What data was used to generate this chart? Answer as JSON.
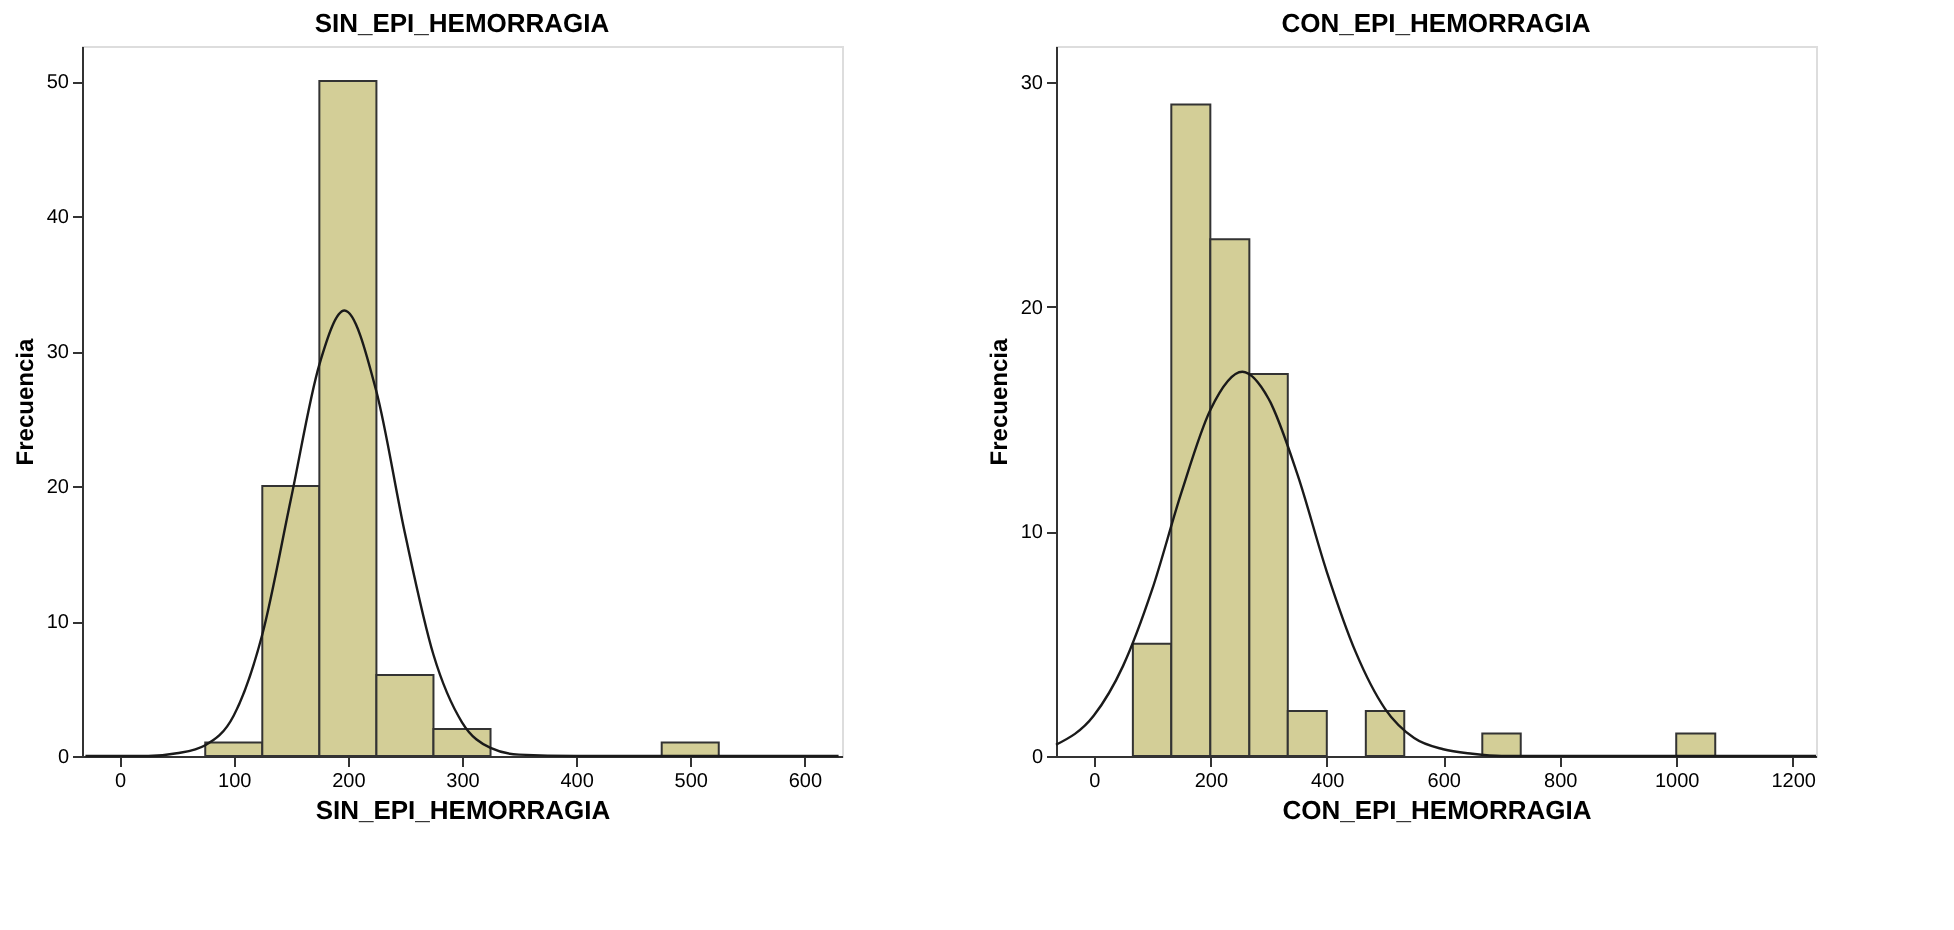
{
  "chart_data": [
    {
      "type": "histogram",
      "title": "SIN_EPI_HEMORRAGIA",
      "xlabel": "SIN_EPI_HEMORRAGIA",
      "ylabel": "Frecuencia",
      "xlim": [
        -33,
        633
      ],
      "xticks": [
        0,
        100,
        200,
        300,
        400,
        500,
        600
      ],
      "ylim": [
        0,
        52.6
      ],
      "yticks": [
        0,
        10,
        20,
        30,
        40,
        50
      ],
      "grid": false,
      "series": [
        {
          "color": "#d3ce97",
          "bins": [
            75,
            125,
            175,
            225,
            275,
            325
          ],
          "values": [
            1,
            20,
            50,
            6,
            2
          ]
        },
        {
          "color": "#d3ce97",
          "bins": [
            475,
            525
          ],
          "values": [
            1
          ]
        },
        {
          "type": "line",
          "color": "#1a1a1a",
          "x": [
            -30,
            0,
            25,
            50,
            75,
            100,
            125,
            150,
            175,
            197,
            225,
            250,
            275,
            300,
            325,
            350,
            400,
            630
          ],
          "values": [
            0,
            0,
            0,
            0.2,
            0.8,
            3,
            9,
            19,
            29,
            33,
            27,
            16.5,
            7.5,
            2.5,
            0.6,
            0.1,
            0,
            0
          ]
        }
      ]
    },
    {
      "type": "histogram",
      "title": "CON_EPI_HEMORRAGIA",
      "xlabel": "CON_EPI_HEMORRAGIA",
      "ylabel": "Frecuencia",
      "xlim": [
        -65,
        1240
      ],
      "xticks": [
        0,
        200,
        400,
        600,
        800,
        1000,
        1200
      ],
      "ylim": [
        0,
        31.6
      ],
      "yticks": [
        0,
        10,
        20,
        30
      ],
      "grid": false,
      "series": [
        {
          "color": "#d3ce97",
          "bins": [
            67,
            133,
            200,
            267,
            333,
            400
          ],
          "values": [
            5,
            29,
            23,
            17,
            2
          ]
        },
        {
          "color": "#d3ce97",
          "bins": [
            467,
            533
          ],
          "values": [
            2
          ]
        },
        {
          "color": "#d3ce97",
          "bins": [
            667,
            733
          ],
          "values": [
            1
          ]
        },
        {
          "color": "#d3ce97",
          "bins": [
            1000,
            1067
          ],
          "values": [
            1
          ]
        },
        {
          "type": "line",
          "color": "#1a1a1a",
          "x": [
            -65,
            0,
            50,
            100,
            150,
            200,
            255,
            300,
            350,
            400,
            450,
            500,
            550,
            600,
            650,
            700,
            1240
          ],
          "values": [
            0.5,
            1.8,
            4,
            7.4,
            11.7,
            15.4,
            17.1,
            15.9,
            12.5,
            8.2,
            4.6,
            2.1,
            0.8,
            0.3,
            0.1,
            0,
            0
          ]
        }
      ]
    }
  ]
}
